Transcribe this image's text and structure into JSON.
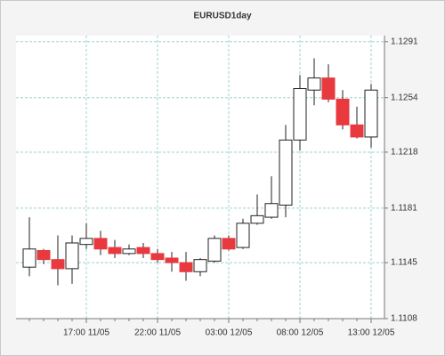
{
  "chart_data": {
    "type": "candlestick",
    "title": "EURUSD1day",
    "categories": [
      null,
      null,
      null,
      null,
      "17:00 11/05",
      null,
      null,
      null,
      null,
      "22:00 11/05",
      null,
      null,
      null,
      null,
      "03:00 12/05",
      null,
      null,
      null,
      null,
      "08:00 12/05",
      null,
      null,
      null,
      null,
      "13:00 12/05"
    ],
    "open": [
      1.1142,
      1.1153,
      1.1147,
      1.1141,
      1.1157,
      1.1161,
      1.1155,
      1.1151,
      1.1155,
      1.1151,
      1.1148,
      1.1145,
      1.1139,
      1.1146,
      1.1161,
      1.1155,
      1.1171,
      1.1175,
      1.1183,
      1.1226,
      1.1259,
      1.1267,
      1.1253,
      1.1236,
      1.1228
    ],
    "high": [
      1.1175,
      1.1154,
      1.1163,
      1.1163,
      1.1171,
      1.1166,
      1.116,
      1.1157,
      1.1158,
      1.1154,
      1.1152,
      1.1152,
      1.1148,
      1.1163,
      1.1163,
      1.1174,
      1.119,
      1.1202,
      1.1236,
      1.1269,
      1.128,
      1.1276,
      1.1259,
      1.1248,
      1.1263
    ],
    "low": [
      1.1136,
      1.1144,
      1.113,
      1.1131,
      1.1154,
      1.115,
      1.1148,
      1.115,
      1.1148,
      1.1145,
      1.1139,
      1.1133,
      1.1136,
      1.1145,
      1.1153,
      1.1154,
      1.117,
      1.1174,
      1.1175,
      1.1219,
      1.1249,
      1.1251,
      1.1233,
      1.1227,
      1.1221
    ],
    "close": [
      1.1154,
      1.1147,
      1.1141,
      1.1158,
      1.1161,
      1.1154,
      1.1151,
      1.1154,
      1.1151,
      1.1147,
      1.1145,
      1.1139,
      1.1147,
      1.1161,
      1.1154,
      1.1171,
      1.1176,
      1.1184,
      1.1226,
      1.126,
      1.1267,
      1.1253,
      1.1236,
      1.1228,
      1.1259
    ],
    "up_color": "#ffffff",
    "down_color": "#e8393f",
    "ylim": [
      1.1108,
      1.1295
    ],
    "yticks": [
      1.1108,
      1.1145,
      1.1181,
      1.1218,
      1.1254,
      1.1291
    ],
    "grid": true
  }
}
